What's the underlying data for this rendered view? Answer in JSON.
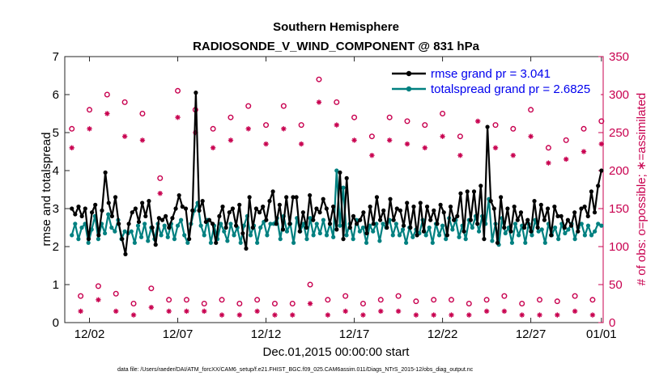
{
  "chart_data": {
    "type": "line",
    "title": "Southern Hemisphere",
    "subtitle": "RADIOSONDE_V_WIND_COMPONENT @ 831 hPa",
    "xlabel": "Dec.01,2015 00:00:00 start",
    "ylabel": "rmse and totalspread",
    "ylabel_right": "# of obs: o=possible; ∗=assimilated",
    "footnote": "data file: /Users/raeder/DAI/ATM_forcXX/CAM6_setup/f.e21.FHIST_BGC.f09_025.CAM6assim.011/Diags_NTrS_2015-12/obs_diag_output.nc",
    "xlim": [
      0.6,
      31.1
    ],
    "ylim": [
      0,
      7
    ],
    "ylim_right": [
      0,
      350
    ],
    "x_ticks": [
      2,
      7,
      12,
      17,
      22,
      27,
      31
    ],
    "x_tick_labels": [
      "12/02",
      "12/07",
      "12/12",
      "12/17",
      "12/22",
      "12/27",
      "01/01"
    ],
    "y_ticks": [
      0,
      1,
      2,
      3,
      4,
      5,
      6,
      7
    ],
    "y_ticks_right": [
      0,
      50,
      100,
      150,
      200,
      250,
      300,
      350
    ],
    "legend": {
      "position": "top-right",
      "entries": [
        "rmse grand pr = 3.041",
        "totalspread grand pr = 2.6825"
      ]
    },
    "series": [
      {
        "name": "rmse grand pr = 3.041",
        "color": "#000000",
        "values": [
          3.0,
          2.85,
          3.05,
          2.8,
          3.0,
          2.2,
          2.9,
          3.1,
          2.3,
          2.95,
          3.95,
          3.15,
          2.8,
          3.3,
          2.6,
          2.2,
          1.8,
          2.6,
          2.9,
          3.0,
          2.65,
          3.15,
          2.8,
          3.2,
          2.5,
          2.05,
          2.75,
          2.7,
          2.8,
          2.5,
          2.75,
          3.0,
          3.35,
          3.05,
          3.0,
          2.2,
          2.95,
          6.05,
          2.95,
          3.2,
          2.65,
          2.7,
          2.6,
          2.1,
          2.8,
          3.05,
          2.5,
          2.9,
          3.0,
          2.55,
          3.1,
          2.35,
          1.95,
          3.3,
          2.5,
          3.0,
          2.9,
          3.05,
          2.7,
          3.2,
          3.45,
          2.6,
          3.1,
          2.45,
          3.3,
          2.6,
          3.3,
          3.3,
          2.4,
          2.9,
          2.5,
          3.35,
          2.7,
          3.0,
          2.9,
          3.25,
          3.0,
          2.6,
          3.05,
          2.45,
          3.95,
          2.2,
          3.8,
          2.5,
          2.8,
          2.6,
          2.7,
          2.9,
          2.35,
          3.05,
          2.6,
          3.3,
          2.7,
          2.95,
          2.5,
          3.25,
          2.7,
          3.0,
          2.95,
          2.55,
          3.15,
          2.5,
          3.05,
          2.3,
          3.15,
          2.4,
          3.05,
          2.7,
          2.95,
          2.6,
          3.1,
          2.9,
          2.3,
          3.05,
          2.7,
          2.8,
          3.4,
          2.4,
          3.45,
          2.7,
          3.45,
          2.6,
          3.6,
          2.2,
          5.15,
          3.2,
          3.0,
          2.1,
          3.3,
          2.5,
          3.0,
          2.4,
          3.05,
          2.7,
          2.9,
          2.5,
          2.7,
          2.4,
          3.2,
          2.5,
          3.1,
          2.7,
          3.0,
          2.3,
          3.05,
          2.8,
          2.8,
          2.5,
          2.7,
          2.55,
          2.9,
          2.4,
          3.0,
          3.05,
          2.8,
          3.45,
          2.9,
          3.6,
          4.0
        ]
      },
      {
        "name": "totalspread grand pr = 2.6825",
        "color": "#008080",
        "values": [
          2.3,
          2.6,
          2.2,
          2.5,
          2.6,
          2.1,
          2.45,
          2.8,
          2.2,
          2.6,
          2.35,
          2.85,
          2.5,
          2.4,
          2.7,
          2.2,
          2.4,
          2.35,
          2.4,
          2.1,
          2.55,
          2.25,
          2.6,
          2.15,
          2.5,
          2.2,
          2.6,
          2.3,
          2.55,
          2.25,
          2.6,
          2.2,
          2.55,
          2.7,
          2.3,
          2.1,
          2.6,
          2.95,
          3.15,
          2.55,
          2.3,
          2.7,
          2.1,
          2.55,
          2.2,
          2.6,
          2.4,
          2.15,
          2.6,
          2.3,
          2.5,
          2.1,
          2.55,
          2.8,
          2.3,
          2.55,
          2.1,
          2.5,
          2.65,
          2.3,
          2.6,
          2.6,
          2.75,
          2.2,
          2.8,
          2.4,
          2.6,
          2.1,
          2.75,
          2.4,
          2.6,
          2.2,
          2.75,
          2.3,
          2.6,
          2.35,
          2.7,
          2.3,
          2.6,
          2.25,
          4.0,
          2.55,
          3.55,
          2.3,
          2.6,
          2.2,
          2.7,
          2.4,
          2.5,
          2.1,
          2.55,
          2.4,
          2.6,
          2.15,
          2.6,
          2.5,
          2.7,
          2.3,
          2.6,
          2.3,
          2.45,
          2.1,
          2.5,
          2.25,
          2.45,
          2.35,
          2.7,
          2.3,
          2.5,
          2.1,
          2.6,
          2.3,
          2.55,
          2.2,
          2.75,
          2.45,
          2.7,
          2.25,
          2.55,
          2.2,
          2.7,
          2.5,
          2.8,
          2.4,
          2.8,
          2.6,
          3.25,
          2.15,
          2.6,
          2.05,
          2.75,
          2.35,
          2.5,
          2.1,
          2.6,
          2.3,
          2.55,
          2.1,
          2.6,
          2.3,
          2.7,
          2.4,
          2.45,
          2.1,
          2.6,
          2.3,
          2.5,
          2.2,
          2.6,
          2.35,
          2.45,
          2.6,
          2.2,
          2.5,
          2.6,
          2.3,
          2.55,
          2.3,
          2.4,
          2.6,
          2.55
        ]
      },
      {
        "name": "possible",
        "axis": "right",
        "color": "#c8004f",
        "marker": "o",
        "x": [
          1,
          1.5,
          2,
          2.5,
          3,
          3.5,
          4,
          4.5,
          5,
          5.5,
          6,
          6.5,
          7,
          7.5,
          8,
          8.5,
          9,
          9.5,
          10,
          10.5,
          11,
          11.5,
          12,
          12.5,
          13,
          13.5,
          14,
          14.5,
          15,
          15.5,
          16,
          16.5,
          17,
          17.5,
          18,
          18.5,
          19,
          19.5,
          20,
          20.5,
          21,
          21.5,
          22,
          22.5,
          23,
          23.5,
          24,
          24.5,
          25,
          25.5,
          26,
          26.5,
          27,
          27.5,
          28,
          28.5,
          29,
          29.5,
          30,
          30.5,
          31
        ],
        "values": [
          255,
          35,
          280,
          48,
          300,
          38,
          290,
          25,
          275,
          45,
          190,
          30,
          305,
          30,
          280,
          25,
          255,
          30,
          270,
          25,
          285,
          30,
          260,
          25,
          285,
          25,
          260,
          50,
          320,
          30,
          290,
          35,
          270,
          25,
          245,
          30,
          270,
          35,
          265,
          28,
          260,
          30,
          275,
          30,
          245,
          25,
          300,
          30,
          260,
          35,
          255,
          25,
          280,
          30,
          230,
          28,
          240,
          35,
          255,
          30,
          265
        ]
      },
      {
        "name": "assimilated",
        "axis": "right",
        "color": "#c8004f",
        "marker": "*",
        "x": [
          1,
          1.5,
          2,
          2.5,
          3,
          3.5,
          4,
          4.5,
          5,
          5.5,
          6,
          6.5,
          7,
          7.5,
          8,
          8.5,
          9,
          9.5,
          10,
          10.5,
          11,
          11.5,
          12,
          12.5,
          13,
          13.5,
          14,
          14.5,
          15,
          15.5,
          16,
          16.5,
          17,
          17.5,
          18,
          18.5,
          19,
          19.5,
          20,
          20.5,
          21,
          21.5,
          22,
          22.5,
          23,
          23.5,
          24,
          24.5,
          25,
          25.5,
          26,
          26.5,
          27,
          27.5,
          28,
          28.5,
          29,
          29.5,
          30,
          30.5,
          31
        ],
        "values": [
          230,
          15,
          255,
          30,
          275,
          15,
          245,
          10,
          240,
          20,
          170,
          15,
          270,
          15,
          250,
          15,
          230,
          10,
          240,
          10,
          255,
          15,
          235,
          10,
          255,
          10,
          235,
          25,
          290,
          10,
          260,
          15,
          240,
          10,
          220,
          15,
          240,
          15,
          235,
          10,
          230,
          10,
          245,
          10,
          220,
          10,
          265,
          15,
          230,
          15,
          220,
          10,
          245,
          10,
          210,
          10,
          215,
          15,
          225,
          10,
          235
        ]
      }
    ]
  }
}
